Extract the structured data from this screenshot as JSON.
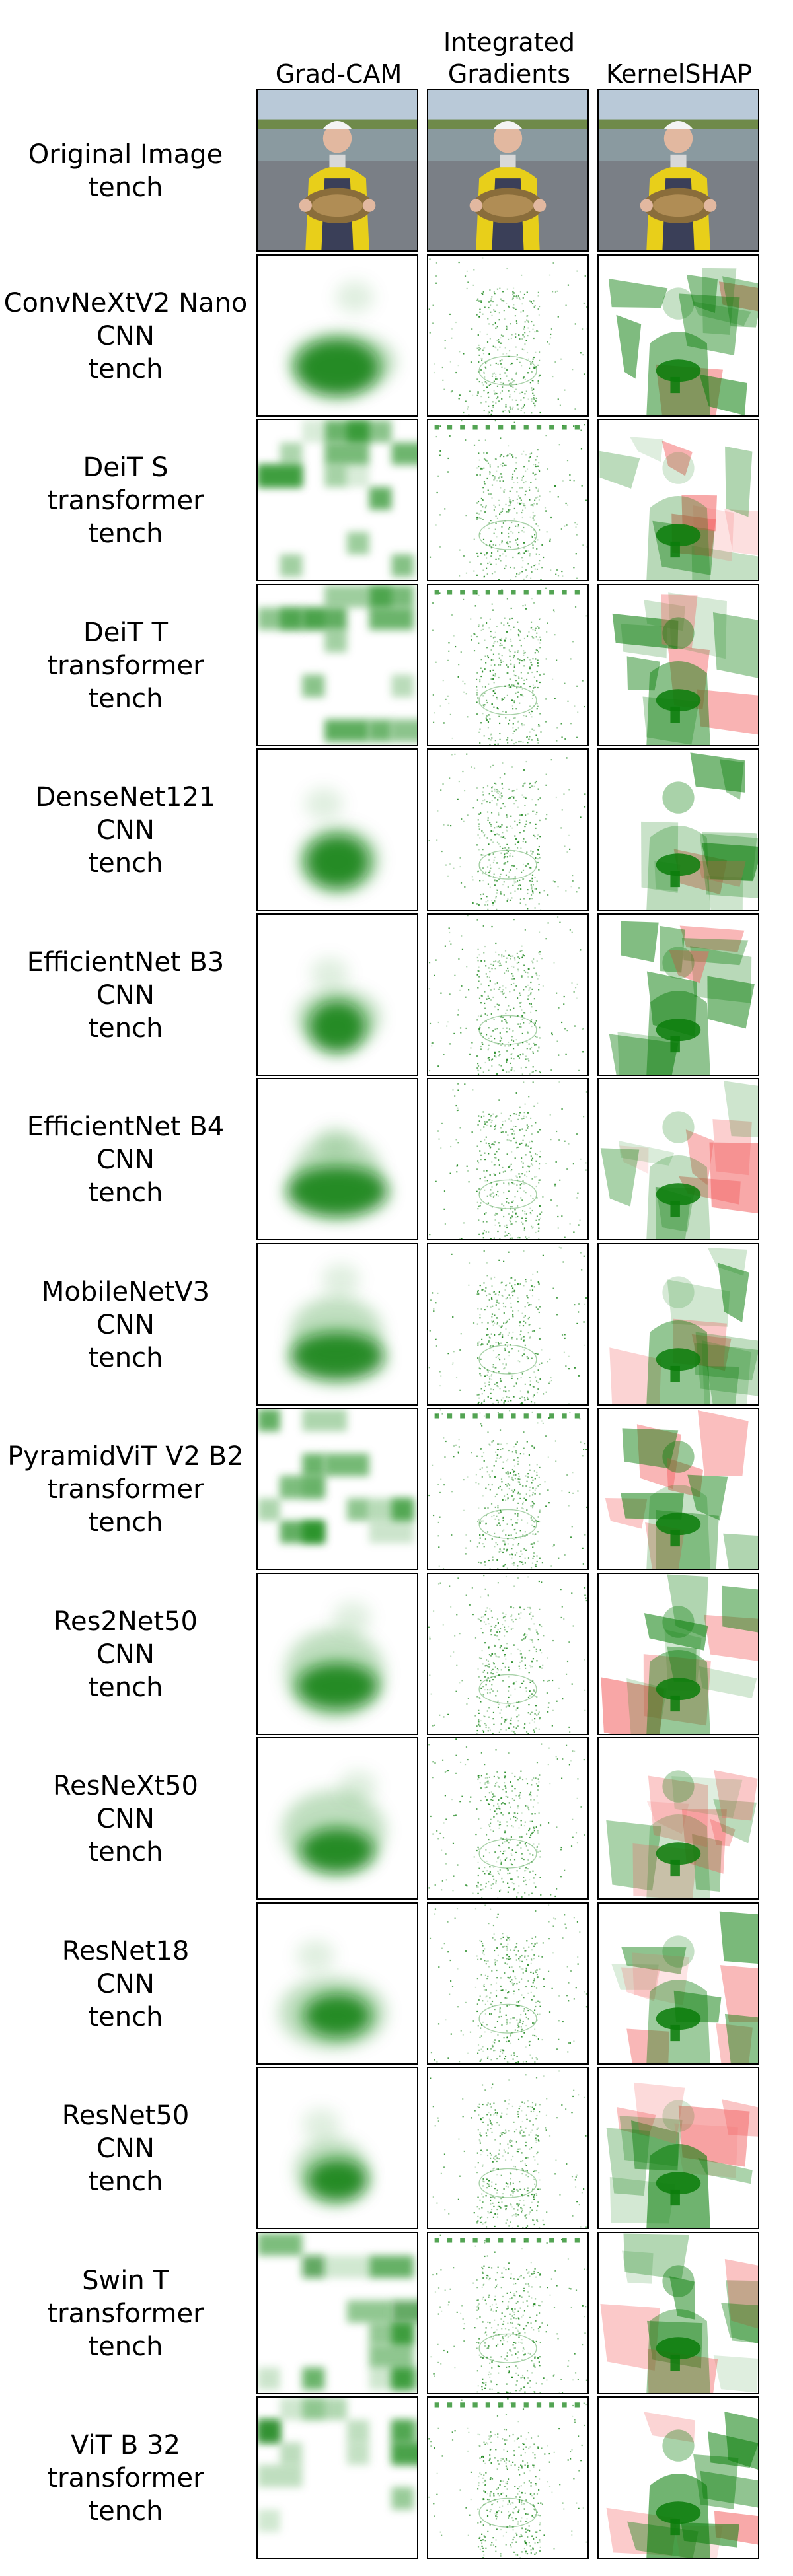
{
  "columns": [
    "Grad-CAM",
    "Integrated\nGradients",
    "KernelSHAP"
  ],
  "original": {
    "label": "Original Image",
    "class": "tench"
  },
  "models": [
    {
      "name": "ConvNeXtV2 Nano",
      "family": "CNN",
      "class": "tench"
    },
    {
      "name": "DeiT S",
      "family": "transformer",
      "class": "tench"
    },
    {
      "name": "DeiT T",
      "family": "transformer",
      "class": "tench"
    },
    {
      "name": "DenseNet121",
      "family": "CNN",
      "class": "tench"
    },
    {
      "name": "EfficientNet B3",
      "family": "CNN",
      "class": "tench"
    },
    {
      "name": "EfficientNet B4",
      "family": "CNN",
      "class": "tench"
    },
    {
      "name": "MobileNetV3",
      "family": "CNN",
      "class": "tench"
    },
    {
      "name": "PyramidViT V2 B2",
      "family": "transformer",
      "class": "tench"
    },
    {
      "name": "Res2Net50",
      "family": "CNN",
      "class": "tench"
    },
    {
      "name": "ResNeXt50",
      "family": "CNN",
      "class": "tench"
    },
    {
      "name": "ResNet18",
      "family": "CNN",
      "class": "tench"
    },
    {
      "name": "ResNet50",
      "family": "CNN",
      "class": "tench"
    },
    {
      "name": "Swin T",
      "family": "transformer",
      "class": "tench"
    },
    {
      "name": "ViT B 32",
      "family": "transformer",
      "class": "tench"
    }
  ],
  "colors": {
    "positive": "#0a7d0a",
    "negative": "#f26060",
    "border": "#000000"
  }
}
